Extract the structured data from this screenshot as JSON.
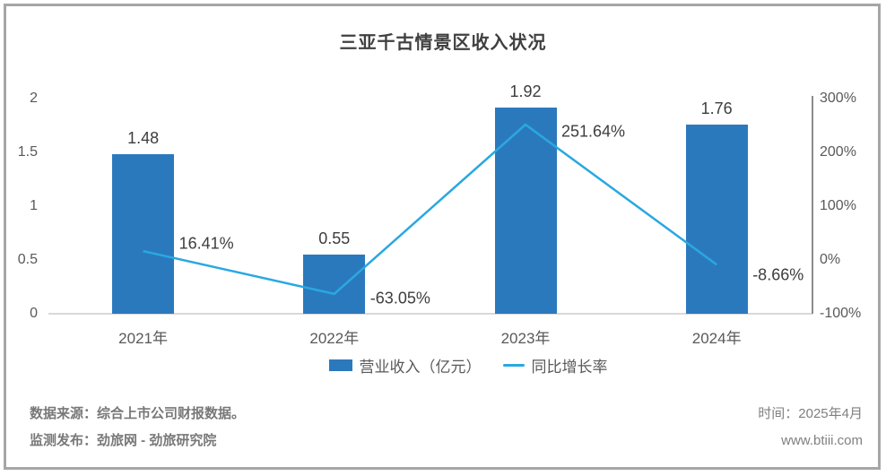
{
  "title": "三亚千古情景区收入状况",
  "chart_data": {
    "type": "bar+line combo",
    "title": "三亚千古情景区收入状况",
    "categories": [
      "2021年",
      "2022年",
      "2023年",
      "2024年"
    ],
    "series": [
      {
        "name": "营业收入（亿元）",
        "type": "bar",
        "axis": "left",
        "values": [
          1.48,
          0.55,
          1.92,
          1.76
        ],
        "labels": [
          "1.48",
          "0.55",
          "1.92",
          "1.76"
        ],
        "color": "#2b79bd"
      },
      {
        "name": "同比增长率",
        "type": "line",
        "axis": "right",
        "values": [
          16.41,
          -63.05,
          251.64,
          -8.66
        ],
        "labels": [
          "16.41%",
          "-63.05%",
          "251.64%",
          "-8.66%"
        ],
        "color": "#29a8e1"
      }
    ],
    "left_axis": {
      "ticks": [
        "2",
        "1.5",
        "1",
        "0.5",
        "0"
      ],
      "values": [
        2,
        1.5,
        1,
        0.5,
        0
      ],
      "ylim": [
        0,
        2
      ]
    },
    "right_axis": {
      "ticks": [
        "300%",
        "200%",
        "100%",
        "0%",
        "-100%"
      ],
      "values": [
        300,
        200,
        100,
        0,
        -100
      ],
      "ylim": [
        -100,
        300
      ]
    },
    "grid": false,
    "legend_position": "bottom"
  },
  "footer": {
    "source_line1": "数据来源：综合上市公司财报数据。",
    "source_line2": "监测发布：劲旅网 - 劲旅研究院",
    "time_label": "时间：2025年4月",
    "website": "www.btiii.com"
  },
  "colors": {
    "bar": "#2b79bd",
    "line": "#29a8e1",
    "frame_border": "#a6a6a6",
    "axis_line": "#8c8c8c",
    "baseline": "#d9d9d9",
    "title_text": "#404040",
    "tick_text": "#595959",
    "footer_text": "#787878"
  }
}
